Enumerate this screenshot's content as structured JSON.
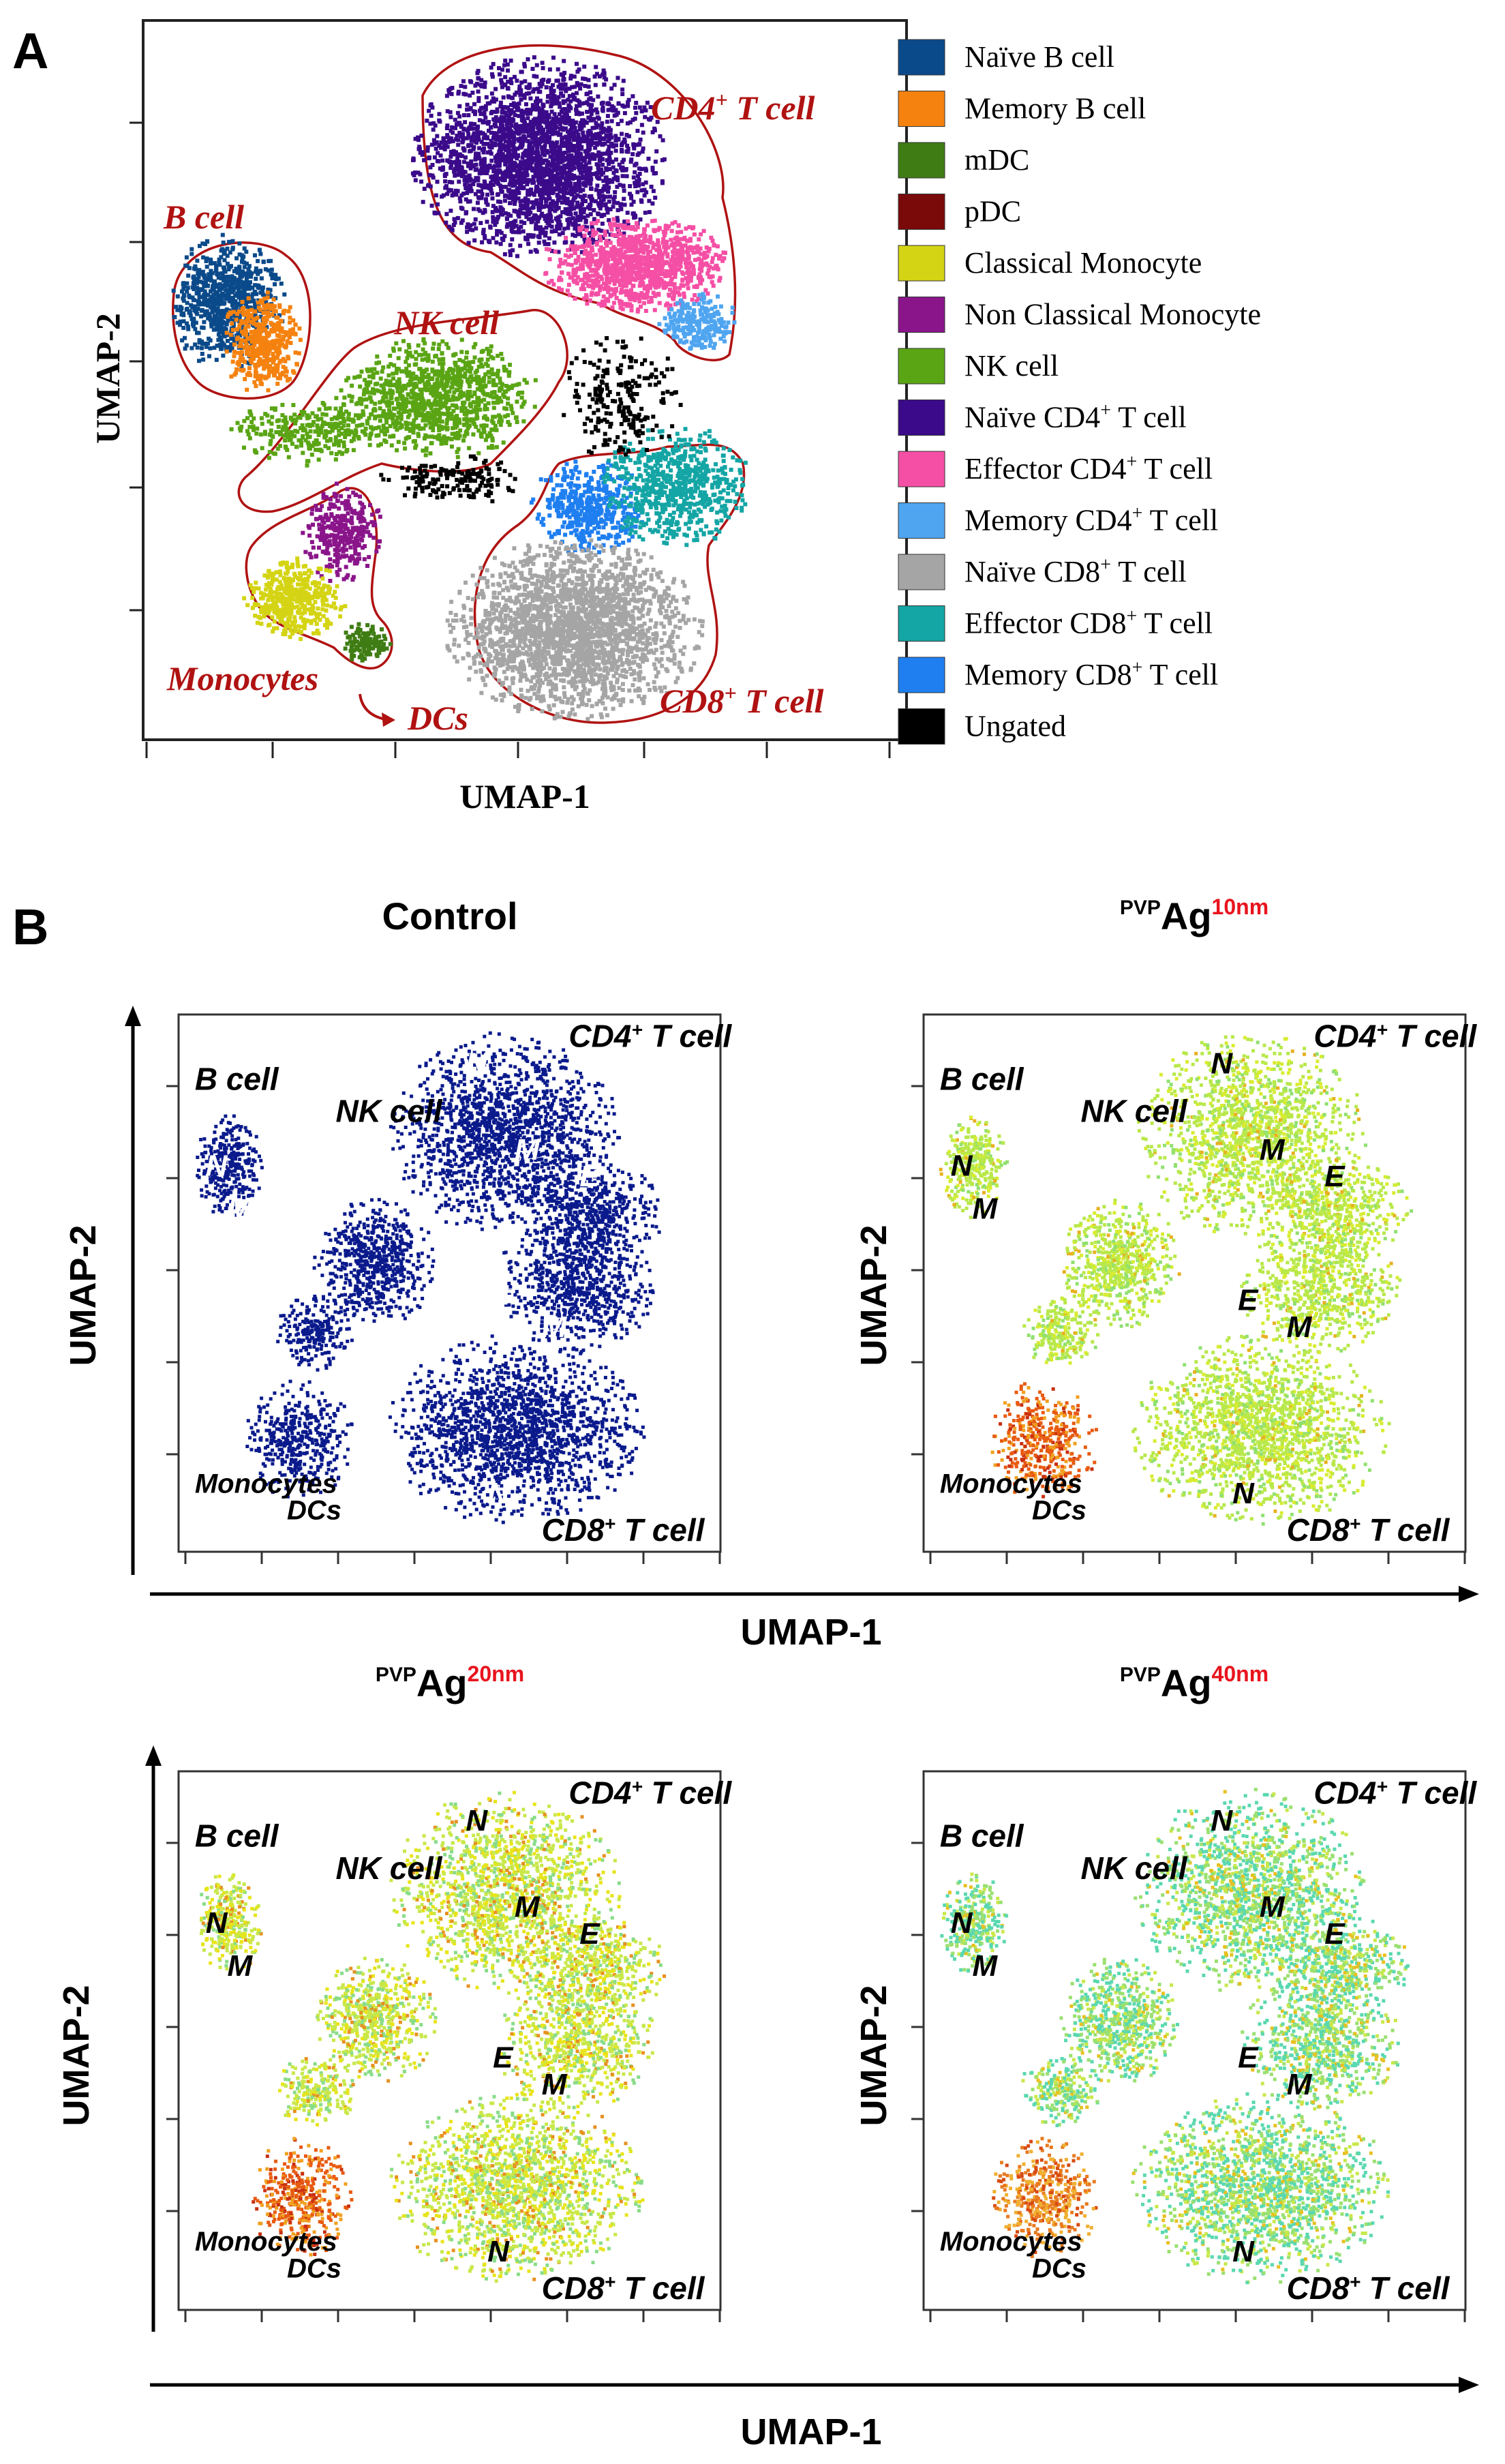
{
  "figure": {
    "panel_a_letter": "A",
    "panel_b_letter": "B"
  },
  "panel_a": {
    "xlabel": "UMAP-1",
    "ylabel": "UMAP-2",
    "cluster_labels": [
      {
        "text": "CD4",
        "sup": "+",
        "rest": " T cell"
      },
      {
        "text": "B cell",
        "sup": "",
        "rest": ""
      },
      {
        "text": "NK cell",
        "sup": "",
        "rest": ""
      },
      {
        "text": "Monocytes",
        "sup": "",
        "rest": ""
      },
      {
        "text": "DCs",
        "sup": "",
        "rest": ""
      },
      {
        "text": "CD8",
        "sup": "+",
        "rest": " T cell"
      }
    ],
    "legend": [
      {
        "label": "Naïve B cell",
        "color": "#0b4a8a"
      },
      {
        "label": "Memory B cell",
        "color": "#f5820f"
      },
      {
        "label": "mDC",
        "color": "#3f7d14"
      },
      {
        "label": "pDC",
        "color": "#7a0a0a"
      },
      {
        "label": "Classical Monocyte",
        "color": "#d4d414"
      },
      {
        "label": "Non Classical Monocyte",
        "color": "#8a158a"
      },
      {
        "label": "NK cell",
        "color": "#5aa514"
      },
      {
        "label": "Naïve CD4+ T  cell",
        "color": "#3b0a8a"
      },
      {
        "label": "Effector CD4+ T  cell",
        "color": "#f54fa5"
      },
      {
        "label": "Memory CD4+ T  cell",
        "color": "#4fa5f0"
      },
      {
        "label": "Naïve CD8+ T  cell",
        "color": "#a5a5a5"
      },
      {
        "label": "Effector CD8+ T  cell",
        "color": "#14a5a5"
      },
      {
        "label": "Memory CD8+ T  cell",
        "color": "#1f7ff0"
      },
      {
        "label": "Ungated",
        "color": "#000000"
      }
    ]
  },
  "panel_b": {
    "xlabel": "UMAP-1",
    "ylabel": "UMAP-2",
    "label_b_cell": "B cell",
    "label_nk_cell": "NK cell",
    "label_monocytes": "Monocytes",
    "label_dcs": "DCs",
    "label_cd4": "CD4",
    "label_cd8": "CD8",
    "label_sup": "+",
    "label_tcell": " T cell",
    "letter_n": "N",
    "letter_m": "M",
    "letter_e": "E",
    "subplots": [
      {
        "title_prefix": "",
        "title_main": "Control",
        "title_size": "",
        "palette": "control"
      },
      {
        "title_prefix": "PVP",
        "title_main": "Ag",
        "title_size": "10nm",
        "palette": "ag10"
      },
      {
        "title_prefix": "PVP",
        "title_main": "Ag",
        "title_size": "20nm",
        "palette": "ag20"
      },
      {
        "title_prefix": "PVP",
        "title_main": "Ag",
        "title_size": "40nm",
        "palette": "ag40"
      }
    ]
  },
  "colors": {
    "outline_red": "#b01212",
    "size_red": "#e8141e",
    "control_blue": "#0a1a8c",
    "ag_green": "#b8e84a",
    "ag_teal": "#4fd8b0",
    "ag_yellow": "#e8e41a",
    "ag_orange": "#e85a10"
  }
}
